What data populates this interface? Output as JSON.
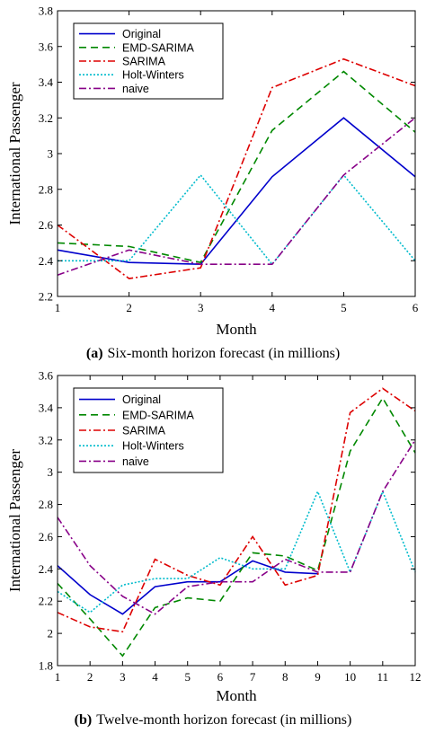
{
  "chart_data": [
    {
      "type": "line",
      "caption_label": "(a)",
      "caption_text": "Six-month horizon forecast (in millions)",
      "xlabel": "Month",
      "ylabel": "International Passenger",
      "xlim": [
        1,
        6
      ],
      "ylim": [
        2.2,
        3.8
      ],
      "x_ticks": [
        1,
        2,
        3,
        4,
        5,
        6
      ],
      "y_ticks": [
        "2.2",
        "2.4",
        "2.6",
        "2.8",
        "3",
        "3.2",
        "3.4",
        "3.6",
        "3.8"
      ],
      "legend_position": "top-left",
      "x": [
        1,
        2,
        3,
        4,
        5,
        6
      ],
      "series": [
        {
          "name": "Original",
          "color": "#0000cc",
          "dash": "solid",
          "values": [
            2.46,
            2.39,
            2.38,
            2.87,
            3.2,
            2.87
          ]
        },
        {
          "name": "EMD-SARIMA",
          "color": "#008800",
          "dash": "dashed",
          "values": [
            2.5,
            2.48,
            2.39,
            3.13,
            3.46,
            3.12
          ]
        },
        {
          "name": "SARIMA",
          "color": "#dd0000",
          "dash": "dashdot",
          "values": [
            2.6,
            2.3,
            2.36,
            3.37,
            3.53,
            3.38
          ]
        },
        {
          "name": "Holt-Winters",
          "color": "#00bbcc",
          "dash": "dotted",
          "values": [
            2.4,
            2.4,
            2.88,
            2.38,
            2.88,
            2.4
          ]
        },
        {
          "name": "naive",
          "color": "#880088",
          "dash": "dashdot",
          "values": [
            2.32,
            2.46,
            2.38,
            2.38,
            2.88,
            3.2
          ]
        }
      ]
    },
    {
      "type": "line",
      "caption_label": "(b)",
      "caption_text": "Twelve-month horizon forecast (in millions)",
      "xlabel": "Month",
      "ylabel": "International Passenger",
      "xlim": [
        1,
        12
      ],
      "ylim": [
        1.8,
        3.6
      ],
      "x_ticks": [
        1,
        2,
        3,
        4,
        5,
        6,
        7,
        8,
        9,
        10,
        11,
        12
      ],
      "y_ticks": [
        "1.8",
        "2",
        "2.2",
        "2.4",
        "2.6",
        "2.8",
        "3",
        "3.2",
        "3.4",
        "3.6"
      ],
      "legend_position": "top-left",
      "x": [
        1,
        2,
        3,
        4,
        5,
        6,
        7,
        8,
        9,
        10,
        11,
        12
      ],
      "series": [
        {
          "name": "Original",
          "color": "#0000cc",
          "dash": "solid",
          "values": [
            2.42,
            2.24,
            2.12,
            2.29,
            2.32,
            2.32,
            2.45,
            2.38,
            2.37,
            null,
            null,
            null
          ]
        },
        {
          "name": "EMD-SARIMA",
          "color": "#008800",
          "dash": "dashed",
          "values": [
            2.31,
            2.09,
            1.86,
            2.16,
            2.22,
            2.2,
            2.5,
            2.48,
            2.39,
            3.13,
            3.46,
            3.12
          ]
        },
        {
          "name": "SARIMA",
          "color": "#dd0000",
          "dash": "dashdot",
          "values": [
            2.13,
            2.04,
            2.01,
            2.46,
            2.36,
            2.3,
            2.6,
            2.3,
            2.36,
            3.37,
            3.52,
            3.38
          ]
        },
        {
          "name": "Holt-Winters",
          "color": "#00bbcc",
          "dash": "dotted",
          "values": [
            2.26,
            2.13,
            2.3,
            2.34,
            2.34,
            2.47,
            2.4,
            2.4,
            2.88,
            2.38,
            2.88,
            2.38
          ]
        },
        {
          "name": "naive",
          "color": "#880088",
          "dash": "dashdot",
          "values": [
            2.72,
            2.42,
            2.23,
            2.12,
            2.29,
            2.32,
            2.32,
            2.46,
            2.38,
            2.38,
            2.88,
            3.2
          ]
        }
      ]
    }
  ]
}
